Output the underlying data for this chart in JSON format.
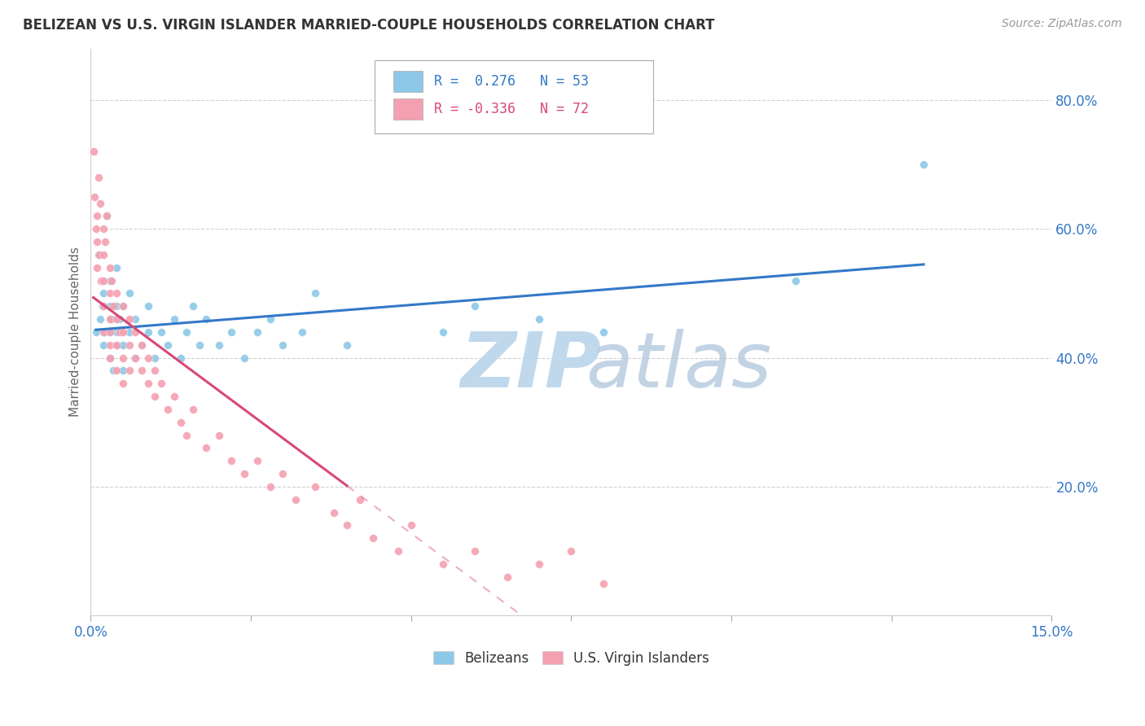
{
  "title": "BELIZEAN VS U.S. VIRGIN ISLANDER MARRIED-COUPLE HOUSEHOLDS CORRELATION CHART",
  "source": "Source: ZipAtlas.com",
  "ylabel": "Married-couple Households",
  "xlim": [
    0.0,
    0.15
  ],
  "ylim": [
    0.0,
    0.88
  ],
  "yticks": [
    0.2,
    0.4,
    0.6,
    0.8
  ],
  "ytick_labels": [
    "20.0%",
    "40.0%",
    "60.0%",
    "80.0%"
  ],
  "xtick_positions": [
    0.0,
    0.025,
    0.05,
    0.075,
    0.1,
    0.125,
    0.15
  ],
  "xtick_labels": [
    "0.0%",
    "",
    "",
    "",
    "",
    "",
    "15.0%"
  ],
  "r_belizean": 0.276,
  "n_belizean": 53,
  "r_virgin": -0.336,
  "n_virgin": 72,
  "color_belizean": "#8dc8e8",
  "color_virgin": "#f4a0b0",
  "trend_color_belizean": "#3378c8",
  "trend_color_virgin": "#d84878",
  "watermark_zip_color": "#c0d8ec",
  "watermark_atlas_color": "#b8cce0",
  "belizean_x": [
    0.0008,
    0.0012,
    0.0015,
    0.0018,
    0.002,
    0.002,
    0.0022,
    0.0025,
    0.003,
    0.003,
    0.003,
    0.003,
    0.0032,
    0.0035,
    0.004,
    0.004,
    0.004,
    0.0042,
    0.0045,
    0.005,
    0.005,
    0.005,
    0.006,
    0.006,
    0.007,
    0.007,
    0.008,
    0.009,
    0.009,
    0.01,
    0.011,
    0.012,
    0.013,
    0.014,
    0.015,
    0.016,
    0.017,
    0.018,
    0.02,
    0.022,
    0.024,
    0.026,
    0.028,
    0.03,
    0.033,
    0.035,
    0.04,
    0.055,
    0.06,
    0.07,
    0.08,
    0.11,
    0.13
  ],
  "belizean_y": [
    0.44,
    0.56,
    0.46,
    0.48,
    0.42,
    0.5,
    0.44,
    0.62,
    0.4,
    0.44,
    0.48,
    0.52,
    0.46,
    0.38,
    0.44,
    0.48,
    0.54,
    0.42,
    0.46,
    0.38,
    0.42,
    0.48,
    0.44,
    0.5,
    0.4,
    0.46,
    0.42,
    0.44,
    0.48,
    0.4,
    0.44,
    0.42,
    0.46,
    0.4,
    0.44,
    0.48,
    0.42,
    0.46,
    0.42,
    0.44,
    0.4,
    0.44,
    0.46,
    0.42,
    0.44,
    0.5,
    0.42,
    0.44,
    0.48,
    0.46,
    0.44,
    0.52,
    0.7
  ],
  "virgin_x": [
    0.0004,
    0.0006,
    0.0008,
    0.001,
    0.001,
    0.001,
    0.0012,
    0.0014,
    0.0015,
    0.0016,
    0.002,
    0.002,
    0.002,
    0.002,
    0.002,
    0.0022,
    0.0025,
    0.003,
    0.003,
    0.003,
    0.003,
    0.003,
    0.003,
    0.0032,
    0.0035,
    0.004,
    0.004,
    0.004,
    0.004,
    0.0045,
    0.005,
    0.005,
    0.005,
    0.005,
    0.006,
    0.006,
    0.006,
    0.007,
    0.007,
    0.008,
    0.008,
    0.009,
    0.009,
    0.01,
    0.01,
    0.011,
    0.012,
    0.013,
    0.014,
    0.015,
    0.016,
    0.018,
    0.02,
    0.022,
    0.024,
    0.026,
    0.028,
    0.03,
    0.032,
    0.035,
    0.038,
    0.04,
    0.042,
    0.044,
    0.048,
    0.05,
    0.055,
    0.06,
    0.065,
    0.07,
    0.075,
    0.08
  ],
  "virgin_y": [
    0.72,
    0.65,
    0.6,
    0.62,
    0.58,
    0.54,
    0.68,
    0.56,
    0.64,
    0.52,
    0.6,
    0.56,
    0.52,
    0.48,
    0.44,
    0.58,
    0.62,
    0.54,
    0.5,
    0.46,
    0.44,
    0.42,
    0.4,
    0.52,
    0.48,
    0.5,
    0.46,
    0.42,
    0.38,
    0.44,
    0.48,
    0.44,
    0.4,
    0.36,
    0.46,
    0.42,
    0.38,
    0.44,
    0.4,
    0.42,
    0.38,
    0.4,
    0.36,
    0.38,
    0.34,
    0.36,
    0.32,
    0.34,
    0.3,
    0.28,
    0.32,
    0.26,
    0.28,
    0.24,
    0.22,
    0.24,
    0.2,
    0.22,
    0.18,
    0.2,
    0.16,
    0.14,
    0.18,
    0.12,
    0.1,
    0.14,
    0.08,
    0.1,
    0.06,
    0.08,
    0.1,
    0.05
  ]
}
